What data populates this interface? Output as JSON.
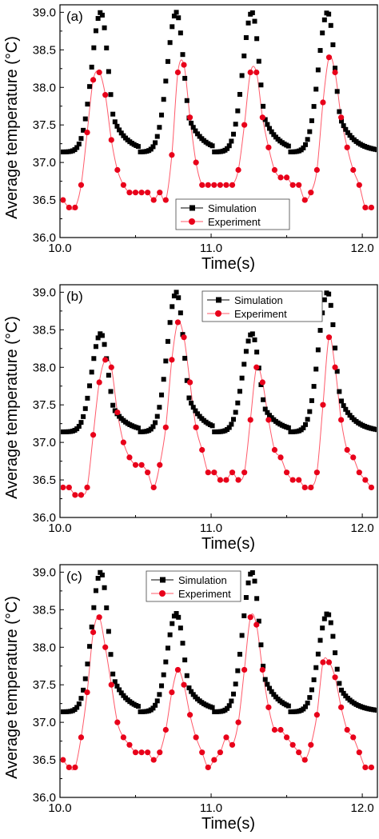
{
  "figure": {
    "panels": [
      "(a)",
      "(b)",
      "(c)"
    ]
  },
  "colors": {
    "simulation": "#000000",
    "experiment": "#e8001a",
    "experiment_line": "#ff5a6a",
    "axes": "#000000"
  },
  "chart_data": [
    {
      "type": "scatter",
      "panel_label": "(a)",
      "xlabel": "Time(s)",
      "ylabel": "Average temperature (°C)",
      "xlim": [
        10.0,
        12.1
      ],
      "ylim": [
        36.0,
        39.1
      ],
      "xticks": [
        {
          "value": 10.0,
          "label": "10.0"
        },
        {
          "value": 11.0,
          "label": "11.0"
        },
        {
          "value": 12.0,
          "label": "12.0"
        }
      ],
      "yticks": [
        {
          "value": 36.0,
          "label": "36.0"
        },
        {
          "value": 36.5,
          "label": "36.5"
        },
        {
          "value": 37.0,
          "label": "37.0"
        },
        {
          "value": 37.5,
          "label": "37.5"
        },
        {
          "value": 38.0,
          "label": "38.0"
        },
        {
          "value": 38.5,
          "label": "38.5"
        },
        {
          "value": 39.0,
          "label": "39.0"
        }
      ],
      "legend": "bottom-center",
      "grid": false,
      "series": [
        {
          "name": "Simulation",
          "marker": "square",
          "line": false,
          "period": 0.5,
          "peaks": [
            10.27,
            10.77,
            11.27,
            11.77
          ],
          "peak_values": [
            39.0,
            39.0,
            39.0,
            39.0
          ],
          "baseline": 37.14,
          "x_start": 10.0,
          "x_end": 12.1,
          "step": 0.014
        },
        {
          "name": "Experiment",
          "marker": "circle",
          "line": true,
          "points": [
            [
              10.02,
              36.5
            ],
            [
              10.06,
              36.4
            ],
            [
              10.1,
              36.4
            ],
            [
              10.14,
              36.7
            ],
            [
              10.18,
              37.4
            ],
            [
              10.22,
              38.1
            ],
            [
              10.26,
              38.2
            ],
            [
              10.3,
              37.9
            ],
            [
              10.34,
              37.3
            ],
            [
              10.38,
              36.9
            ],
            [
              10.42,
              36.7
            ],
            [
              10.46,
              36.6
            ],
            [
              10.5,
              36.6
            ],
            [
              10.54,
              36.6
            ],
            [
              10.58,
              36.6
            ],
            [
              10.62,
              36.5
            ],
            [
              10.66,
              36.6
            ],
            [
              10.7,
              36.5
            ],
            [
              10.74,
              37.1
            ],
            [
              10.78,
              38.2
            ],
            [
              10.82,
              38.3
            ],
            [
              10.86,
              37.6
            ],
            [
              10.9,
              37.0
            ],
            [
              10.94,
              36.7
            ],
            [
              10.98,
              36.7
            ],
            [
              11.02,
              36.7
            ],
            [
              11.06,
              36.7
            ],
            [
              11.1,
              36.7
            ],
            [
              11.14,
              36.7
            ],
            [
              11.18,
              36.9
            ],
            [
              11.22,
              37.5
            ],
            [
              11.26,
              38.2
            ],
            [
              11.3,
              38.2
            ],
            [
              11.34,
              37.6
            ],
            [
              11.38,
              37.2
            ],
            [
              11.42,
              36.9
            ],
            [
              11.46,
              36.8
            ],
            [
              11.5,
              36.8
            ],
            [
              11.54,
              36.7
            ],
            [
              11.58,
              36.7
            ],
            [
              11.62,
              36.5
            ],
            [
              11.66,
              36.6
            ],
            [
              11.7,
              36.9
            ],
            [
              11.74,
              37.8
            ],
            [
              11.78,
              38.4
            ],
            [
              11.82,
              38.2
            ],
            [
              11.86,
              37.6
            ],
            [
              11.9,
              37.2
            ],
            [
              11.94,
              36.9
            ],
            [
              11.98,
              36.7
            ],
            [
              12.02,
              36.4
            ],
            [
              12.06,
              36.4
            ]
          ]
        }
      ]
    },
    {
      "type": "scatter",
      "panel_label": "(b)",
      "xlabel": "Time(s)",
      "ylabel": "Average temperature (°C)",
      "xlim": [
        10.0,
        12.1
      ],
      "ylim": [
        36.0,
        39.1
      ],
      "xticks": [
        {
          "value": 10.0,
          "label": "10.0"
        },
        {
          "value": 11.0,
          "label": "11.0"
        },
        {
          "value": 12.0,
          "label": "12.0"
        }
      ],
      "yticks": [
        {
          "value": 36.0,
          "label": "36.0"
        },
        {
          "value": 36.5,
          "label": "36.5"
        },
        {
          "value": 37.0,
          "label": "37.0"
        },
        {
          "value": 37.5,
          "label": "37.5"
        },
        {
          "value": 38.0,
          "label": "38.0"
        },
        {
          "value": 38.5,
          "label": "38.5"
        },
        {
          "value": 39.0,
          "label": "39.0"
        }
      ],
      "legend": "top-right",
      "grid": false,
      "series": [
        {
          "name": "Simulation",
          "marker": "square",
          "line": false,
          "period": 0.5,
          "peaks": [
            10.27,
            10.77,
            11.27,
            11.77
          ],
          "peak_values": [
            38.45,
            39.0,
            38.45,
            39.0
          ],
          "baseline": 37.14,
          "x_start": 10.0,
          "x_end": 12.1,
          "step": 0.014
        },
        {
          "name": "Experiment",
          "marker": "circle",
          "line": true,
          "points": [
            [
              10.02,
              36.4
            ],
            [
              10.06,
              36.4
            ],
            [
              10.1,
              36.3
            ],
            [
              10.14,
              36.3
            ],
            [
              10.18,
              36.4
            ],
            [
              10.22,
              37.1
            ],
            [
              10.26,
              37.8
            ],
            [
              10.3,
              38.1
            ],
            [
              10.34,
              38.0
            ],
            [
              10.38,
              37.4
            ],
            [
              10.42,
              37.0
            ],
            [
              10.46,
              36.8
            ],
            [
              10.5,
              36.7
            ],
            [
              10.54,
              36.7
            ],
            [
              10.58,
              36.6
            ],
            [
              10.62,
              36.4
            ],
            [
              10.66,
              36.7
            ],
            [
              10.7,
              37.2
            ],
            [
              10.74,
              38.1
            ],
            [
              10.78,
              38.6
            ],
            [
              10.82,
              38.4
            ],
            [
              10.86,
              37.8
            ],
            [
              10.9,
              37.2
            ],
            [
              10.94,
              36.9
            ],
            [
              10.98,
              36.6
            ],
            [
              11.02,
              36.6
            ],
            [
              11.06,
              36.5
            ],
            [
              11.1,
              36.5
            ],
            [
              11.14,
              36.6
            ],
            [
              11.18,
              36.5
            ],
            [
              11.22,
              36.6
            ],
            [
              11.26,
              37.3
            ],
            [
              11.3,
              38.0
            ],
            [
              11.34,
              37.8
            ],
            [
              11.38,
              37.3
            ],
            [
              11.42,
              36.9
            ],
            [
              11.46,
              36.8
            ],
            [
              11.5,
              36.6
            ],
            [
              11.54,
              36.5
            ],
            [
              11.58,
              36.5
            ],
            [
              11.62,
              36.4
            ],
            [
              11.66,
              36.4
            ],
            [
              11.7,
              36.6
            ],
            [
              11.74,
              37.5
            ],
            [
              11.78,
              38.4
            ],
            [
              11.82,
              38.0
            ],
            [
              11.86,
              37.3
            ],
            [
              11.9,
              36.9
            ],
            [
              11.94,
              36.8
            ],
            [
              11.98,
              36.6
            ],
            [
              12.02,
              36.5
            ],
            [
              12.06,
              36.4
            ]
          ]
        }
      ]
    },
    {
      "type": "scatter",
      "panel_label": "(c)",
      "xlabel": "Time(s)",
      "ylabel": "Average temperature (°C)",
      "xlim": [
        10.0,
        12.1
      ],
      "ylim": [
        36.0,
        39.1
      ],
      "xticks": [
        {
          "value": 10.0,
          "label": "10.0"
        },
        {
          "value": 11.0,
          "label": "11.0"
        },
        {
          "value": 12.0,
          "label": "12.0"
        }
      ],
      "yticks": [
        {
          "value": 36.0,
          "label": "36.0"
        },
        {
          "value": 36.5,
          "label": "36.5"
        },
        {
          "value": 37.0,
          "label": "37.0"
        },
        {
          "value": 37.5,
          "label": "37.5"
        },
        {
          "value": 38.0,
          "label": "38.0"
        },
        {
          "value": 38.5,
          "label": "38.5"
        },
        {
          "value": 39.0,
          "label": "39.0"
        }
      ],
      "legend": "top-center",
      "grid": false,
      "series": [
        {
          "name": "Simulation",
          "marker": "square",
          "line": false,
          "period": 0.5,
          "peaks": [
            10.27,
            10.77,
            11.27,
            11.77
          ],
          "peak_values": [
            39.0,
            38.45,
            39.0,
            38.45
          ],
          "baseline": 37.14,
          "x_start": 10.0,
          "x_end": 12.1,
          "step": 0.014
        },
        {
          "name": "Experiment",
          "marker": "circle",
          "line": true,
          "points": [
            [
              10.02,
              36.5
            ],
            [
              10.06,
              36.4
            ],
            [
              10.1,
              36.4
            ],
            [
              10.14,
              36.8
            ],
            [
              10.18,
              37.4
            ],
            [
              10.22,
              38.2
            ],
            [
              10.26,
              38.4
            ],
            [
              10.3,
              38.0
            ],
            [
              10.34,
              37.5
            ],
            [
              10.38,
              37.0
            ],
            [
              10.42,
              36.8
            ],
            [
              10.46,
              36.7
            ],
            [
              10.5,
              36.6
            ],
            [
              10.54,
              36.6
            ],
            [
              10.58,
              36.6
            ],
            [
              10.62,
              36.5
            ],
            [
              10.66,
              36.6
            ],
            [
              10.7,
              36.9
            ],
            [
              10.74,
              37.4
            ],
            [
              10.78,
              37.7
            ],
            [
              10.82,
              37.5
            ],
            [
              10.86,
              37.1
            ],
            [
              10.9,
              36.8
            ],
            [
              10.94,
              36.6
            ],
            [
              10.98,
              36.4
            ],
            [
              11.02,
              36.5
            ],
            [
              11.06,
              36.6
            ],
            [
              11.1,
              36.8
            ],
            [
              11.14,
              36.7
            ],
            [
              11.18,
              37.0
            ],
            [
              11.22,
              37.7
            ],
            [
              11.26,
              38.4
            ],
            [
              11.3,
              38.3
            ],
            [
              11.34,
              37.7
            ],
            [
              11.38,
              37.2
            ],
            [
              11.42,
              36.9
            ],
            [
              11.46,
              36.9
            ],
            [
              11.5,
              36.8
            ],
            [
              11.54,
              36.7
            ],
            [
              11.58,
              36.6
            ],
            [
              11.62,
              36.5
            ],
            [
              11.66,
              36.7
            ],
            [
              11.7,
              37.1
            ],
            [
              11.74,
              37.8
            ],
            [
              11.78,
              37.8
            ],
            [
              11.82,
              37.6
            ],
            [
              11.86,
              37.2
            ],
            [
              11.9,
              36.9
            ],
            [
              11.94,
              36.8
            ],
            [
              11.98,
              36.6
            ],
            [
              12.02,
              36.4
            ],
            [
              12.06,
              36.4
            ]
          ]
        }
      ]
    }
  ]
}
